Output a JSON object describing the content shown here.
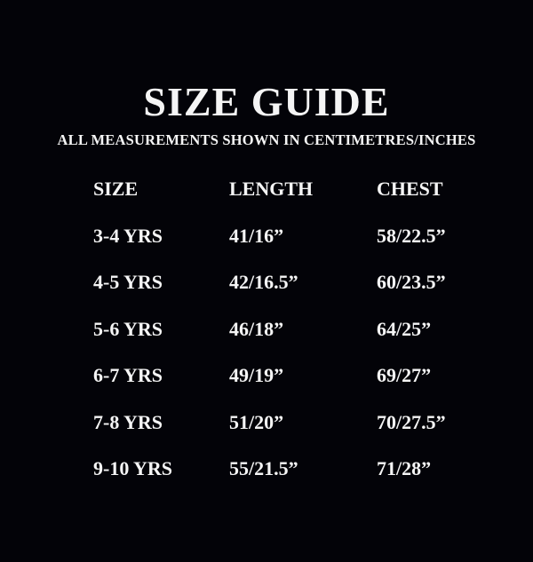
{
  "page": {
    "title": "SIZE GUIDE",
    "subtitle": "ALL MEASUREMENTS SHOWN IN CENTIMETRES/INCHES"
  },
  "table": {
    "headers": [
      "SIZE",
      "LENGTH",
      "CHEST"
    ],
    "rows": [
      [
        "3-4 YRS",
        "41/16”",
        "58/22.5”"
      ],
      [
        "4-5 YRS",
        "42/16.5”",
        "60/23.5”"
      ],
      [
        "5-6 YRS",
        "46/18”",
        "64/25”"
      ],
      [
        "6-7 YRS",
        "49/19”",
        "69/27”"
      ],
      [
        "7-8 YRS",
        "51/20”",
        "70/27.5”"
      ],
      [
        "9-10 YRS",
        "55/21.5”",
        "71/28”"
      ]
    ]
  },
  "colors": {
    "background": "#030308",
    "text": "#f5f5f5"
  }
}
